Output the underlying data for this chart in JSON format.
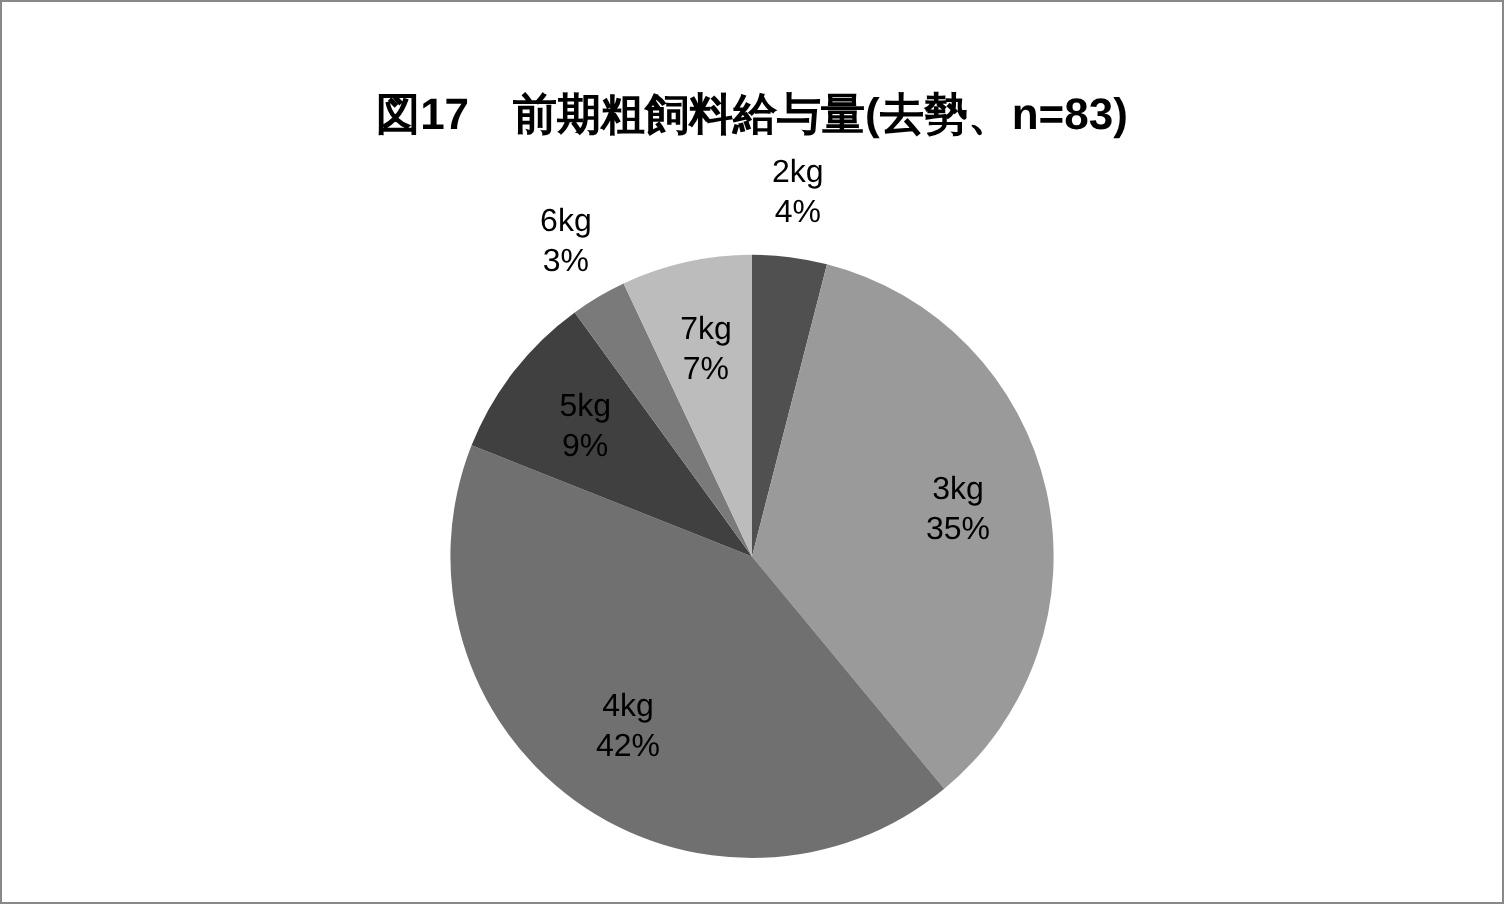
{
  "chart_data": {
    "type": "pie",
    "title": "図17　前期粗飼料給与量(去勢、n=83)",
    "categories": [
      "2kg",
      "3kg",
      "4kg",
      "5kg",
      "6kg",
      "7kg"
    ],
    "values": [
      4,
      35,
      42,
      9,
      3,
      7
    ],
    "value_labels": [
      "4%",
      "35%",
      "42%",
      "9%",
      "3%",
      "7%"
    ],
    "colors": [
      "#505050",
      "#9a9a9a",
      "#707070",
      "#404040",
      "#7a7a7a",
      "#bcbcbc"
    ],
    "legend": false
  }
}
